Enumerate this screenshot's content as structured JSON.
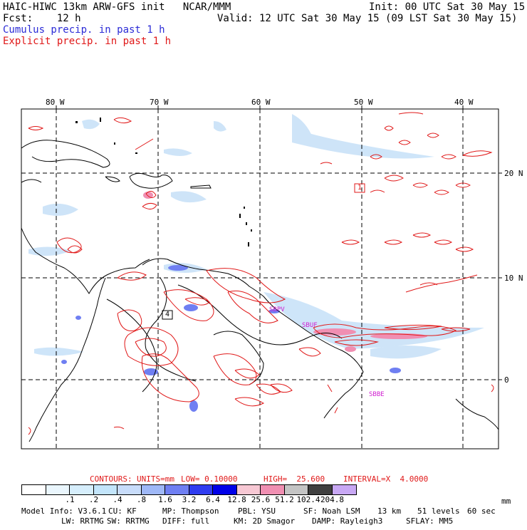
{
  "header": {
    "title_left": "HAIC-HIWC 13km ARW-GFS init   NCAR/MMM",
    "init": "Init: 00 UTC Sat 30 May 15",
    "fcst": "Fcst:    12 h",
    "valid": "Valid: 12 UTC Sat 30 May 15 (09 LST Sat 30 May 15)",
    "line_cumulus": "Cumulus precip. in past 1 h",
    "line_explicit": "Explicit precip. in past 1 h"
  },
  "map": {
    "lon_labels": [
      "80 W",
      "70 W",
      "60 W",
      "50 W",
      "40 W"
    ],
    "lat_labels": [
      "20 N",
      "10 N",
      "0"
    ],
    "station_labels": [
      "SBUF",
      "SBBE",
      "SBPV"
    ],
    "box_labels": [
      "1",
      "4"
    ]
  },
  "contours": {
    "label": "CONTOURS:",
    "units": "UNITS=mm",
    "low": "LOW= 0.10000",
    "high": "HIGH=  25.600",
    "interval": "INTERVAL=X  4.0000"
  },
  "legend": {
    "unit": "mm",
    "ticks": [
      ".1",
      ".2",
      ".4",
      ".8",
      "1.6",
      "3.2",
      "6.4",
      "12.8",
      "25.6",
      "51.2",
      "102.4",
      "204.8"
    ],
    "colors": [
      "#ffffff",
      "#eaf6fd",
      "#d6eefc",
      "#c3e5fb",
      "#c8dcfa",
      "#9fb8f7",
      "#6f7ff2",
      "#2f3cf0",
      "#0000e8",
      "#f7c8d4",
      "#f08fb2",
      "#c4c4c4",
      "#404040",
      "#c8a8f4"
    ]
  },
  "model_info": {
    "line1": [
      "Model Info: V3.6.1",
      "CU: KF",
      "MP: Thompson",
      "PBL: YSU",
      "SF: Noah LSM",
      "13 km",
      "51 levels",
      "60 sec"
    ],
    "line2": [
      "LW: RRTMG",
      "SW: RRTMG",
      "DIFF: full",
      "KM: 2D Smagor",
      "DAMP: Rayleigh3",
      "SFLAY: MM5"
    ]
  },
  "colors": {
    "coast": "#000000",
    "grid": "#000000",
    "explicit": "#e01818",
    "cumulus": "#2b2bd6",
    "station": "#d020d0"
  }
}
